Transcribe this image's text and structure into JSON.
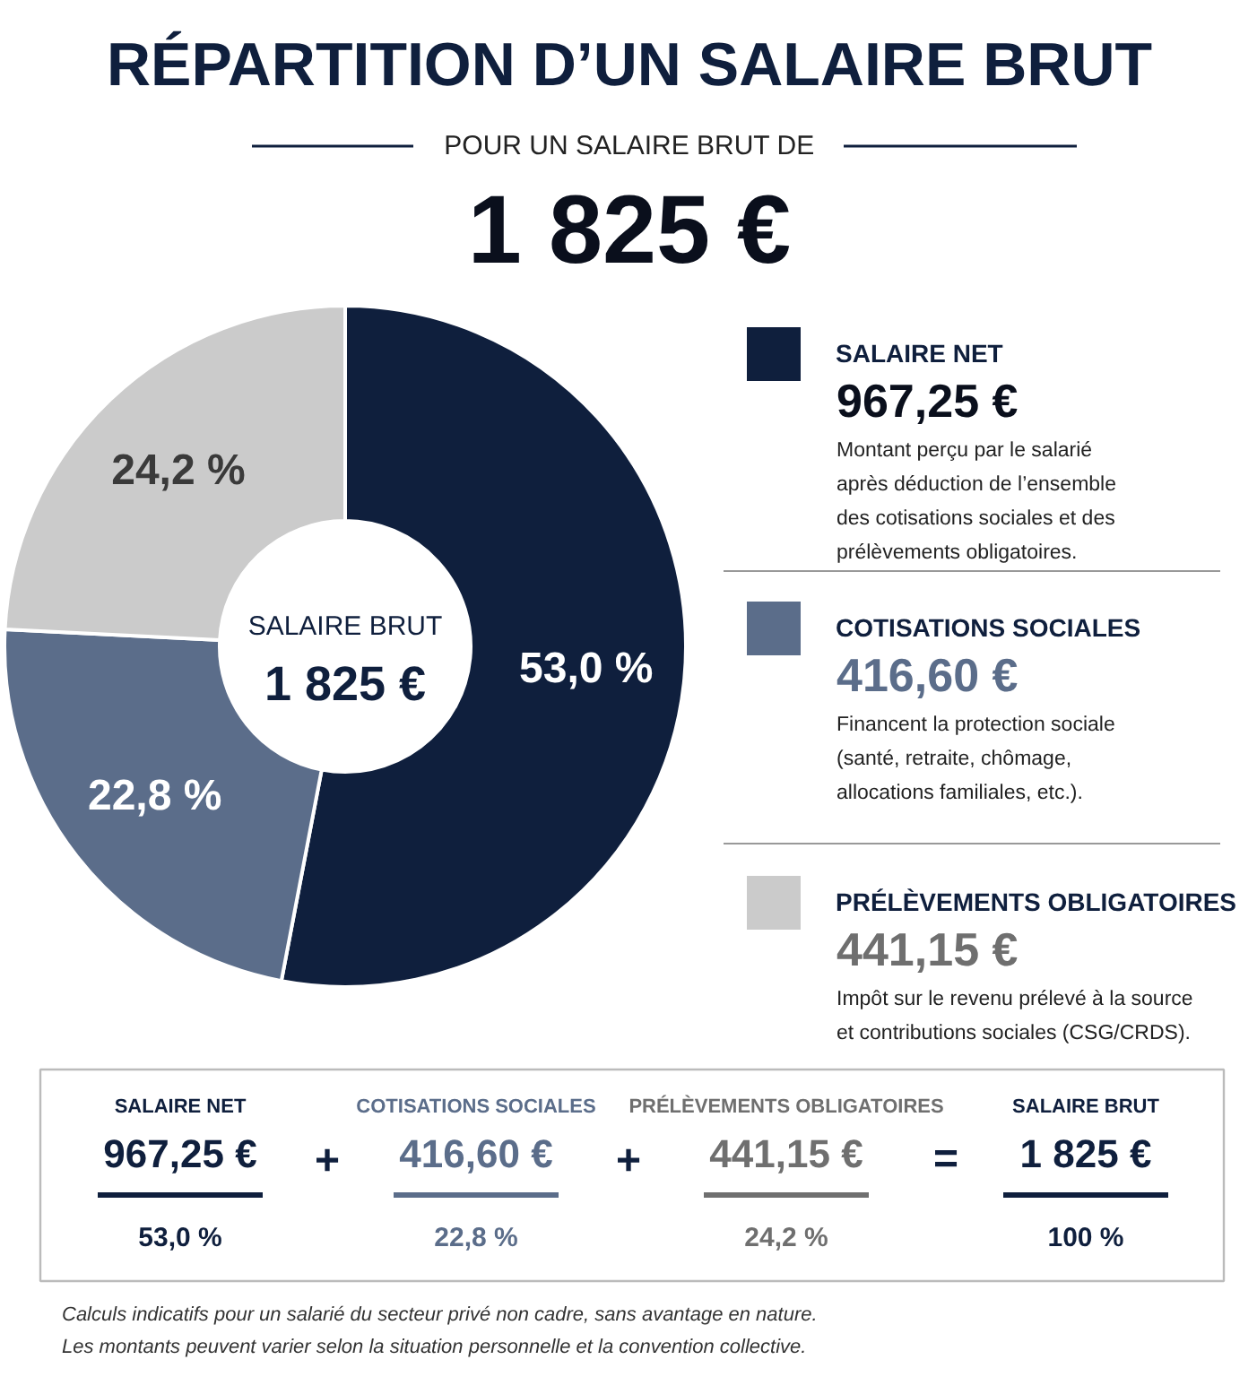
{
  "chart_data": {
    "type": "donut",
    "title": "RÉPARTITION D’UN SALAIRE BRUT",
    "subtitle": "POUR UN SALAIRE BRUT DE",
    "categories": [
      "SALAIRE NET",
      "COTISATIONS SOCIALES",
      "PRÉLÈVEMENTS OBLIGATOIRES"
    ],
    "values": [
      53.0,
      22.8,
      24.2
    ],
    "colors": [
      "#0f1f3d",
      "#5b6d8a",
      "#cbcbcb"
    ],
    "value_labels": [
      "53,0 %",
      "22,8 %",
      "24,2 %"
    ],
    "legend": "right",
    "annotations": [
      "1 825 €",
      "SALAIRE BRUT",
      "1 825 €",
      "967,25 €",
      "Montant perçu par le salarié\naprès déduction de l’ensemble\ndes cotisations sociales et des\nprélèvements obligatoires.",
      "416,60 €",
      "Financent la protection sociale\n(santé, retraite, chômage,\nallocations familiales, etc.).",
      "441,15 €",
      "Impôt sur le revenu prélevé à la source\net contributions sociales (CSG/CRDS).",
      "SALAIRE BRUT",
      "1 825 €",
      "100 %",
      "+",
      "+",
      "=",
      "Calculs indicatifs pour un salarié du secteur privé non cadre, sans avantage en nature.",
      "Les montants peuvent varier selon la situation personnelle et la convention collective."
    ]
  }
}
